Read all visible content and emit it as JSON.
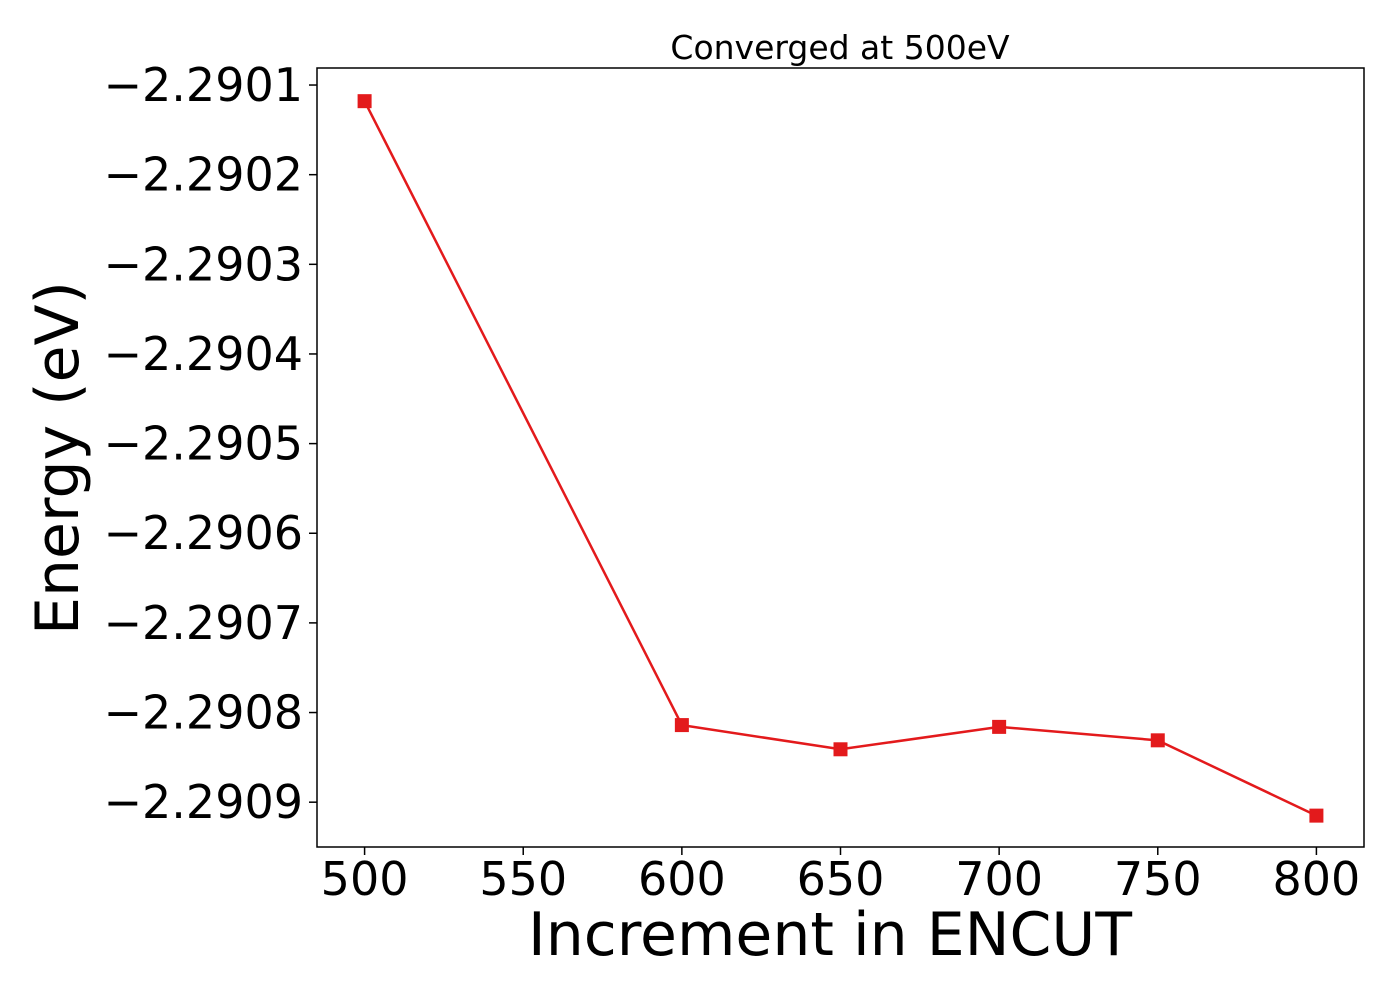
{
  "chart_data": {
    "type": "line",
    "title": "Converged at 500eV",
    "xlabel": "Increment in ENCUT",
    "ylabel": "Energy (eV)",
    "xlim": [
      485,
      815
    ],
    "ylim": [
      -2.29095,
      -2.290081
    ],
    "x_ticks": [
      500,
      550,
      600,
      650,
      700,
      750,
      800
    ],
    "x_tick_labels": [
      "500",
      "550",
      "600",
      "650",
      "700",
      "750",
      "800"
    ],
    "y_ticks": [
      -2.2901,
      -2.2902,
      -2.2903,
      -2.2904,
      -2.2905,
      -2.2906,
      -2.2907,
      -2.2908,
      -2.2909
    ],
    "y_tick_labels": [
      "−2.2901",
      "−2.2902",
      "−2.2903",
      "−2.2904",
      "−2.2905",
      "−2.2906",
      "−2.2907",
      "−2.2908",
      "−2.2909"
    ],
    "grid": false,
    "series": [
      {
        "color": "#e31a1c",
        "marker": "square",
        "x": [
          500,
          600,
          650,
          700,
          750,
          800
        ],
        "y": [
          -2.290118,
          -2.290814,
          -2.290841,
          -2.290816,
          -2.290831,
          -2.290915
        ]
      }
    ]
  }
}
